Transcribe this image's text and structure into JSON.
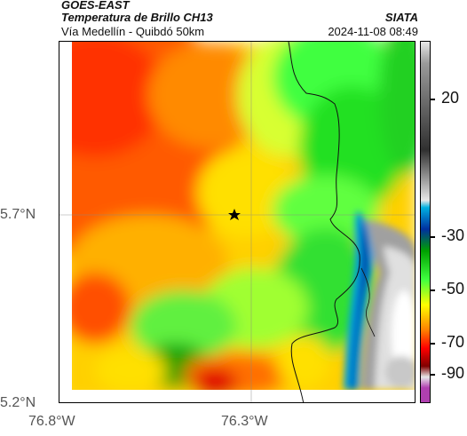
{
  "header": {
    "source": "GOES-EAST",
    "product": "Temperatura de Brillo CH13",
    "region": "Vía Medellín - Quibdó 50km",
    "agency": "SIATA",
    "datetime": "2024-11-08 08:49"
  },
  "axes": {
    "lat_labels": [
      "5.7°N",
      "5.2°N"
    ],
    "lon_labels": [
      "76.8°W",
      "76.3°W"
    ]
  },
  "colorbar": {
    "ticks": [
      "20",
      "-30",
      "-50",
      "-70",
      "-90"
    ],
    "palette": [
      "#e8e8e8",
      "#9a9a9a",
      "#303030",
      "#00b0e0",
      "#0030a0",
      "#00a000",
      "#40ff40",
      "#ffff00",
      "#ff8000",
      "#ff0000",
      "#800000",
      "#b040b0"
    ]
  },
  "map": {
    "marker": "star-icon"
  }
}
